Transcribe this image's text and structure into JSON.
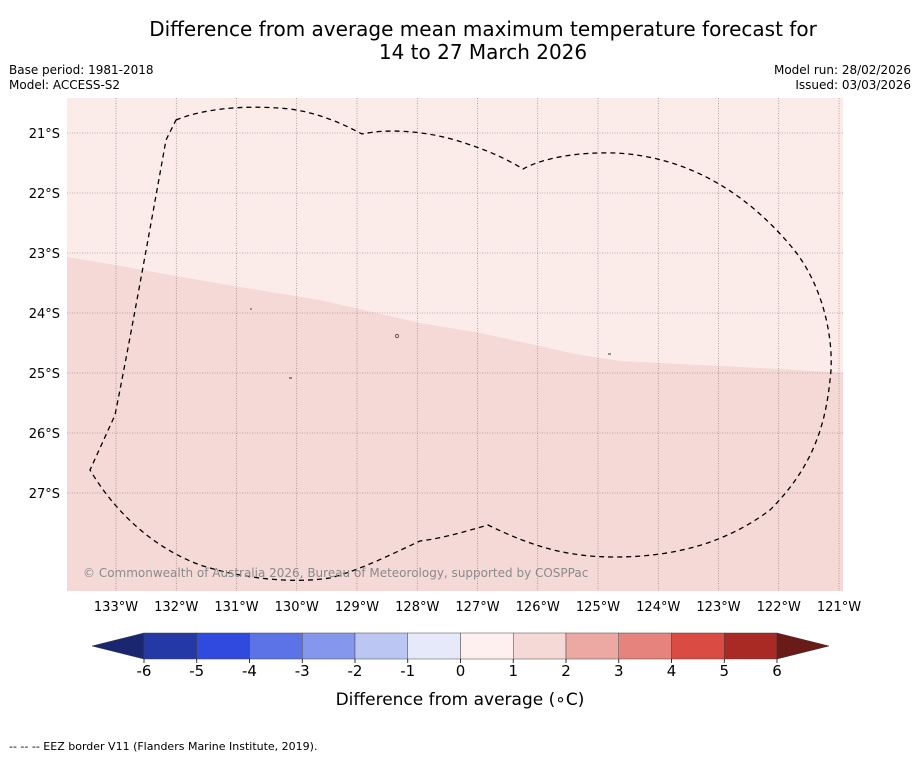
{
  "title": {
    "line1": "Difference from average mean maximum temperature forecast for",
    "line2": "14 to 27 March 2026"
  },
  "meta_left": {
    "base_period": "Base period: 1981-2018",
    "model": "Model: ACCESS-S2"
  },
  "meta_right": {
    "model_run": "Model run: 28/02/2026",
    "issued": "Issued: 03/03/2026"
  },
  "map": {
    "lat_labels": [
      "21°S",
      "22°S",
      "23°S",
      "24°S",
      "25°S",
      "26°S",
      "27°S"
    ],
    "lon_labels": [
      "133°W",
      "132°W",
      "131°W",
      "130°W",
      "129°W",
      "128°W",
      "127°W",
      "126°W",
      "125°W",
      "124°W",
      "123°W",
      "122°W",
      "121°W"
    ],
    "zone_upper_color": "#fbecea",
    "zone_lower_color": "#f5d9d7",
    "copyright": "© Commonwealth of Australia 2026, Bureau of Meteorology, supported by COSPPac"
  },
  "colorbar": {
    "ticks": [
      "-6",
      "-5",
      "-4",
      "-3",
      "-2",
      "-1",
      "0",
      "1",
      "2",
      "3",
      "4",
      "5",
      "6"
    ],
    "colors": [
      "#2438a6",
      "#3049df",
      "#5b73e6",
      "#8597ec",
      "#bcc6f3",
      "#e6e9f9",
      "#fdf0ee",
      "#f5d9d7",
      "#eca9a4",
      "#e6837c",
      "#d94b43",
      "#a92a24"
    ],
    "low_extend_color": "#1a2770",
    "high_extend_color": "#6b1b17",
    "label": "Difference from average (∘C)"
  },
  "footnote": "-- -- -- EEZ border V11 (Flanders Marine Institute, 2019)."
}
